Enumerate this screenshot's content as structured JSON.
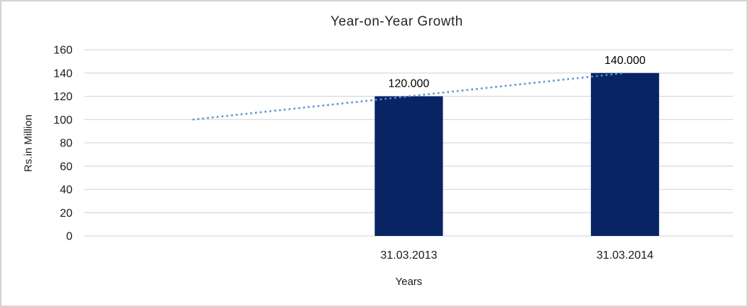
{
  "chart_data": {
    "type": "bar",
    "title": "Year-on-Year Growth",
    "xlabel": "Years",
    "ylabel": "Rs.in Million",
    "categories": [
      "31.03.2013",
      "31.03.2014"
    ],
    "values": [
      120,
      140
    ],
    "data_labels": [
      "120.000",
      "140.000"
    ],
    "ylim": [
      0,
      160
    ],
    "ytick_step": 20,
    "ytick_labels": [
      "0",
      "20",
      "40",
      "60",
      "80",
      "100",
      "120",
      "140",
      "160"
    ],
    "grid": true,
    "legend": false,
    "num_slots": 3,
    "bar_slots": [
      1,
      2
    ],
    "category_slots": [
      1,
      2
    ],
    "trendline": {
      "style": "dotted",
      "slot_values": [
        100,
        120,
        140
      ]
    },
    "colors": {
      "bar": "#082465",
      "trendline": "#5b93d2",
      "gridline": "#d9d9d9",
      "text": "#1a1a1a",
      "border": "#d3d3d3",
      "background": "#ffffff"
    }
  }
}
